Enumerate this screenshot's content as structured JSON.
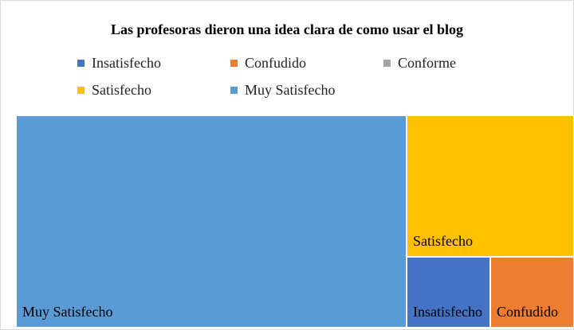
{
  "chart_data": {
    "type": "treemap",
    "title": "Las profesoras dieron una idea clara de como usar el blog",
    "series": [
      {
        "name": "Insatisfecho",
        "color": "#4472c4",
        "value": 1
      },
      {
        "name": "Confudido",
        "color": "#ed7d31",
        "value": 1
      },
      {
        "name": "Conforme",
        "color": "#a5a5a5",
        "value": 0
      },
      {
        "name": "Satisfecho",
        "color": "#ffc000",
        "value": 4
      },
      {
        "name": "Muy Satisfecho",
        "color": "#5b9bd5",
        "value": 14
      }
    ],
    "legend": "top"
  }
}
